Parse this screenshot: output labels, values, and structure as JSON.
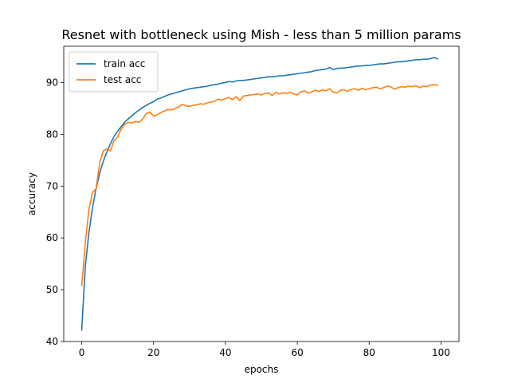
{
  "chart_data": {
    "type": "line",
    "title": "Resnet with bottleneck using Mish - less than 5 million params",
    "xlabel": "epochs",
    "ylabel": "accuracy",
    "xlim": [
      -5,
      105
    ],
    "ylim": [
      40,
      97
    ],
    "xticks": [
      0,
      20,
      40,
      60,
      80,
      100
    ],
    "yticks": [
      40,
      50,
      60,
      70,
      80,
      90
    ],
    "grid": false,
    "legend_position": "upper-left",
    "series": [
      {
        "name": "train acc",
        "color": "#1f77b4",
        "x": [
          0,
          1,
          2,
          3,
          4,
          5,
          6,
          7,
          8,
          9,
          10,
          11,
          12,
          13,
          14,
          15,
          16,
          17,
          18,
          19,
          20,
          21,
          22,
          23,
          24,
          25,
          26,
          27,
          28,
          29,
          30,
          31,
          32,
          33,
          34,
          35,
          36,
          37,
          38,
          39,
          40,
          41,
          42,
          43,
          44,
          45,
          46,
          47,
          48,
          49,
          50,
          51,
          52,
          53,
          54,
          55,
          56,
          57,
          58,
          59,
          60,
          61,
          62,
          63,
          64,
          65,
          66,
          67,
          68,
          69,
          70,
          71,
          72,
          73,
          74,
          75,
          76,
          77,
          78,
          79,
          80,
          81,
          82,
          83,
          84,
          85,
          86,
          87,
          88,
          89,
          90,
          91,
          92,
          93,
          94,
          95,
          96,
          97,
          98,
          99
        ],
        "values": [
          42.2,
          54.5,
          61.0,
          65.8,
          69.5,
          72.5,
          74.8,
          76.6,
          78.2,
          79.6,
          80.6,
          81.5,
          82.4,
          83.0,
          83.6,
          84.2,
          84.7,
          85.2,
          85.6,
          86.0,
          86.3,
          86.8,
          87.0,
          87.3,
          87.6,
          87.8,
          88.0,
          88.2,
          88.4,
          88.6,
          88.8,
          88.9,
          89.0,
          89.1,
          89.2,
          89.3,
          89.5,
          89.6,
          89.7,
          89.9,
          90.0,
          90.2,
          90.1,
          90.3,
          90.4,
          90.4,
          90.5,
          90.6,
          90.7,
          90.8,
          90.9,
          91.0,
          91.1,
          91.1,
          91.2,
          91.3,
          91.3,
          91.4,
          91.5,
          91.6,
          91.7,
          91.8,
          91.9,
          92.0,
          92.1,
          92.3,
          92.4,
          92.5,
          92.6,
          92.9,
          92.5,
          92.7,
          92.8,
          92.8,
          92.9,
          93.0,
          93.1,
          93.2,
          93.2,
          93.3,
          93.3,
          93.4,
          93.5,
          93.6,
          93.6,
          93.7,
          93.8,
          93.9,
          94.0,
          94.0,
          94.1,
          94.2,
          94.3,
          94.4,
          94.4,
          94.5,
          94.5,
          94.6,
          94.8,
          94.6
        ]
      },
      {
        "name": "test acc",
        "color": "#ff7f0e",
        "x": [
          0,
          1,
          2,
          3,
          4,
          5,
          6,
          7,
          8,
          9,
          10,
          11,
          12,
          13,
          14,
          15,
          16,
          17,
          18,
          19,
          20,
          21,
          22,
          23,
          24,
          25,
          26,
          27,
          28,
          29,
          30,
          31,
          32,
          33,
          34,
          35,
          36,
          37,
          38,
          39,
          40,
          41,
          42,
          43,
          44,
          45,
          46,
          47,
          48,
          49,
          50,
          51,
          52,
          53,
          54,
          55,
          56,
          57,
          58,
          59,
          60,
          61,
          62,
          63,
          64,
          65,
          66,
          67,
          68,
          69,
          70,
          71,
          72,
          73,
          74,
          75,
          76,
          77,
          78,
          79,
          80,
          81,
          82,
          83,
          84,
          85,
          86,
          87,
          88,
          89,
          90,
          91,
          92,
          93,
          94,
          95,
          96,
          97,
          98,
          99
        ],
        "values": [
          50.8,
          59.0,
          65.5,
          68.8,
          69.5,
          74.5,
          76.8,
          77.2,
          76.8,
          78.8,
          79.5,
          81.0,
          82.0,
          82.3,
          82.2,
          82.5,
          82.3,
          83.0,
          84.0,
          84.3,
          83.5,
          83.8,
          84.2,
          84.5,
          84.8,
          84.7,
          85.0,
          85.3,
          85.8,
          85.5,
          85.4,
          85.6,
          85.7,
          85.9,
          85.8,
          86.1,
          86.2,
          86.4,
          86.8,
          86.6,
          86.9,
          87.1,
          86.7,
          87.3,
          86.5,
          87.4,
          87.5,
          87.6,
          87.7,
          87.8,
          87.6,
          87.9,
          88.0,
          87.5,
          88.1,
          87.8,
          88.0,
          87.9,
          88.1,
          87.8,
          87.6,
          88.2,
          88.4,
          88.0,
          88.2,
          88.5,
          88.3,
          88.6,
          88.4,
          88.8,
          88.2,
          88.0,
          88.5,
          88.6,
          88.3,
          88.7,
          88.8,
          88.5,
          88.9,
          88.6,
          88.8,
          89.0,
          89.1,
          88.8,
          89.0,
          89.3,
          89.2,
          88.7,
          89.0,
          89.2,
          89.1,
          89.3,
          89.2,
          89.4,
          89.0,
          89.3,
          89.2,
          89.5,
          89.6,
          89.5
        ]
      }
    ]
  }
}
